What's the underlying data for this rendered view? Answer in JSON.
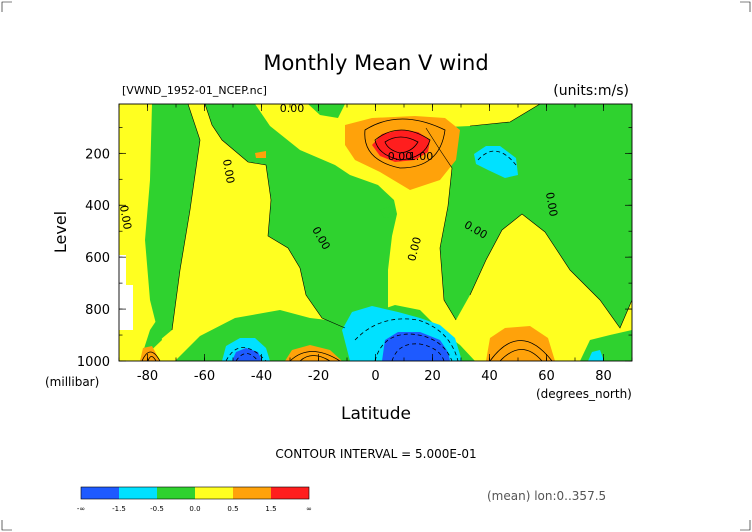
{
  "title": "Monthly Mean V wind",
  "file_label": "[VWND_1952-01_NCEP.nc]",
  "units_label": "(units:m/s)",
  "footer_left": "CONTOUR INTERVAL = 5.000E-01",
  "footer_right": "(mean) lon:0..357.5",
  "chart_data": {
    "type": "heatmap",
    "title": "Monthly Mean V wind",
    "xlabel": "Latitude",
    "xunit": "(degrees_north)",
    "ylabel": "Level",
    "yunit": "(millibar)",
    "xlim": [
      -90,
      90
    ],
    "ylim": [
      1000,
      10
    ],
    "x_ticks": [
      -80,
      -60,
      -40,
      -20,
      0,
      20,
      40,
      60,
      80
    ],
    "y_ticks": [
      200,
      400,
      600,
      800,
      1000
    ],
    "contour_interval": 0.5,
    "contour_labels": [
      "0.00",
      "0.00",
      "0.00",
      "0.00",
      "0.00",
      "0.00",
      "0.00",
      "0.00",
      "1.00"
    ],
    "colorbar": {
      "labels": [
        "-∞",
        "-1.5",
        "-0.5",
        "0.0",
        "0.5",
        "1.5",
        "∞"
      ],
      "colors": [
        "#1e5aff",
        "#00e1ff",
        "#2fd22f",
        "#ffff20",
        "#ffa20a",
        "#ff1e1e"
      ]
    },
    "features": [
      {
        "kind": "max",
        "lat": 8,
        "level": 150,
        "value_range": ">1.5"
      },
      {
        "kind": "min",
        "lat": 12,
        "level": 950,
        "value_range": "<-1.5"
      },
      {
        "kind": "min",
        "lat": -42,
        "level": 970,
        "value_range": "<-1.5"
      },
      {
        "kind": "min",
        "lat": 45,
        "level": 220,
        "value_range": "-1.5 to -0.5"
      }
    ]
  }
}
